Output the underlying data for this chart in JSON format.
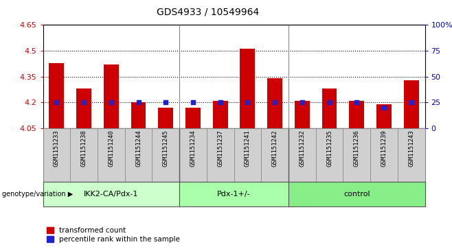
{
  "title": "GDS4933 / 10549964",
  "samples": [
    "GSM1151233",
    "GSM1151238",
    "GSM1151240",
    "GSM1151244",
    "GSM1151245",
    "GSM1151234",
    "GSM1151237",
    "GSM1151241",
    "GSM1151242",
    "GSM1151232",
    "GSM1151235",
    "GSM1151236",
    "GSM1151239",
    "GSM1151243"
  ],
  "red_values": [
    4.43,
    4.28,
    4.42,
    4.2,
    4.17,
    4.17,
    4.21,
    4.51,
    4.34,
    4.21,
    4.28,
    4.21,
    4.19,
    4.33
  ],
  "blue_values": [
    25,
    25,
    25,
    25,
    25,
    25,
    25,
    25,
    25,
    25,
    25,
    25,
    20,
    25
  ],
  "groups": [
    {
      "label": "IKK2-CA/Pdx-1",
      "start": 0,
      "end": 5
    },
    {
      "label": "Pdx-1+/-",
      "start": 5,
      "end": 9
    },
    {
      "label": "control",
      "start": 9,
      "end": 14
    }
  ],
  "group_colors": [
    "#ccffcc",
    "#aaffaa",
    "#88ee88"
  ],
  "ylim_left": [
    4.05,
    4.65
  ],
  "ylim_right": [
    0,
    100
  ],
  "yticks_left": [
    4.05,
    4.2,
    4.35,
    4.5,
    4.65
  ],
  "ytick_labels_left": [
    "4.05",
    "4.2",
    "4.35",
    "4.5",
    "4.65"
  ],
  "yticks_right": [
    0,
    25,
    50,
    75,
    100
  ],
  "ytick_labels_right": [
    "0",
    "25",
    "50",
    "75",
    "100%"
  ],
  "hlines": [
    4.2,
    4.35,
    4.5
  ],
  "bar_color": "#cc0000",
  "dot_color": "#2222cc",
  "sample_bg_color": "#d0d0d0",
  "legend_red": "transformed count",
  "legend_blue": "percentile rank within the sample",
  "xlabel_label": "genotype/variation"
}
